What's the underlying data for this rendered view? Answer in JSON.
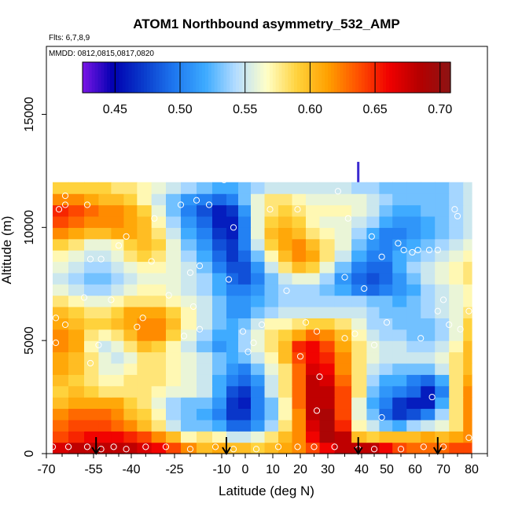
{
  "chart_data": {
    "type": "heatmap",
    "title": "ATOM1 Northbound asymmetry_532_AMP",
    "flights_note": "Flts: 6,7,8,9",
    "dates_note": "MMDD: 0812,0815,0817,0820",
    "xlabel": "Latitude (deg N)",
    "ylabel": "Altitude (m)",
    "xlim": [
      -70,
      85
    ],
    "ylim": [
      0,
      18000
    ],
    "x_ticks": [
      -70,
      -55,
      -40,
      -25,
      -10,
      0,
      10,
      20,
      30,
      40,
      50,
      60,
      70,
      80
    ],
    "x_tick_labels": [
      "-70",
      "-55",
      "-40",
      "-25",
      "-10",
      "0",
      "10",
      "20",
      "30",
      "40",
      "50",
      "60",
      "70",
      "80"
    ],
    "y_ticks": [
      0,
      5000,
      10000,
      15000
    ],
    "y_tick_labels": [
      "0",
      "5000",
      "10000",
      "15000"
    ],
    "colorbar": {
      "min": 0.425,
      "max": 0.708,
      "ticks": [
        0.45,
        0.5,
        0.55,
        0.6,
        0.65,
        0.7
      ],
      "tick_labels": [
        "0.45",
        "0.50",
        "0.55",
        "0.60",
        "0.65",
        "0.70"
      ],
      "colors": [
        "#7a16e6",
        "#0000b0",
        "#0a3ccc",
        "#1e78f0",
        "#3caaff",
        "#b4dcff",
        "#ffffc8",
        "#ffd23c",
        "#ffa000",
        "#ff5000",
        "#f00000",
        "#b40000",
        "#8c1414"
      ]
    },
    "altitude_bins": [
      0,
      500,
      1000,
      1500,
      2000,
      2500,
      3000,
      3500,
      4000,
      4500,
      5000,
      5500,
      6000,
      6500,
      7000,
      7500,
      8000,
      8500,
      9000,
      9500,
      10000,
      10500,
      11000,
      11500,
      12000
    ],
    "latitude_bins": [
      -68,
      -63,
      -58,
      -53,
      -48,
      -43,
      -38,
      -33,
      -28,
      -23,
      -18,
      -13,
      -8,
      -3,
      2,
      7,
      12,
      17,
      22,
      27,
      32,
      37,
      42,
      47,
      52,
      57,
      62,
      67,
      72,
      77,
      80
    ],
    "value_grid": [
      [
        0.67,
        0.68,
        0.68,
        0.68,
        0.68,
        0.68,
        0.67,
        0.66,
        0.64,
        0.62,
        0.6,
        0.61,
        0.6,
        0.6,
        0.59,
        0.6,
        0.61,
        0.62,
        0.64,
        0.66,
        0.68,
        0.68,
        0.68,
        0.66,
        0.64,
        0.63,
        0.63,
        0.63,
        0.64,
        0.64
      ],
      [
        0.64,
        0.65,
        0.66,
        0.66,
        0.66,
        0.65,
        0.64,
        0.62,
        0.6,
        0.57,
        0.58,
        0.57,
        0.55,
        0.55,
        0.56,
        0.58,
        0.6,
        0.62,
        0.66,
        0.69,
        0.68,
        0.6,
        0.59,
        0.6,
        0.6,
        0.6,
        0.61,
        0.6,
        0.61,
        0.62
      ],
      [
        0.63,
        0.64,
        0.64,
        0.64,
        0.63,
        0.62,
        0.6,
        0.58,
        0.55,
        0.53,
        0.53,
        0.52,
        0.49,
        0.49,
        0.51,
        0.54,
        0.58,
        0.62,
        0.67,
        0.69,
        0.65,
        0.57,
        0.55,
        0.53,
        0.52,
        0.54,
        0.55,
        0.56,
        0.58,
        0.62
      ],
      [
        0.62,
        0.63,
        0.63,
        0.63,
        0.62,
        0.6,
        0.59,
        0.57,
        0.54,
        0.53,
        0.52,
        0.5,
        0.47,
        0.47,
        0.5,
        0.53,
        0.57,
        0.62,
        0.68,
        0.69,
        0.64,
        0.56,
        0.53,
        0.49,
        0.47,
        0.48,
        0.5,
        0.54,
        0.58,
        0.62
      ],
      [
        0.6,
        0.61,
        0.61,
        0.61,
        0.61,
        0.59,
        0.58,
        0.56,
        0.54,
        0.53,
        0.53,
        0.51,
        0.47,
        0.46,
        0.5,
        0.53,
        0.57,
        0.63,
        0.68,
        0.68,
        0.64,
        0.56,
        0.52,
        0.5,
        0.47,
        0.46,
        0.46,
        0.52,
        0.58,
        0.62
      ],
      [
        0.59,
        0.6,
        0.59,
        0.58,
        0.58,
        0.58,
        0.58,
        0.57,
        0.56,
        0.56,
        0.55,
        0.52,
        0.48,
        0.47,
        0.5,
        0.55,
        0.58,
        0.63,
        0.68,
        0.68,
        0.64,
        0.58,
        0.53,
        0.51,
        0.5,
        0.49,
        0.46,
        0.5,
        0.58,
        0.62
      ],
      [
        0.6,
        0.59,
        0.58,
        0.57,
        0.57,
        0.58,
        0.58,
        0.58,
        0.57,
        0.56,
        0.55,
        0.52,
        0.5,
        0.49,
        0.51,
        0.55,
        0.58,
        0.63,
        0.68,
        0.67,
        0.63,
        0.58,
        0.54,
        0.52,
        0.52,
        0.5,
        0.49,
        0.52,
        0.58,
        0.61
      ],
      [
        0.61,
        0.6,
        0.58,
        0.56,
        0.56,
        0.57,
        0.58,
        0.58,
        0.57,
        0.56,
        0.55,
        0.53,
        0.51,
        0.5,
        0.53,
        0.56,
        0.58,
        0.63,
        0.67,
        0.66,
        0.62,
        0.58,
        0.55,
        0.54,
        0.53,
        0.53,
        0.53,
        0.55,
        0.58,
        0.6
      ],
      [
        0.61,
        0.6,
        0.58,
        0.56,
        0.55,
        0.56,
        0.58,
        0.58,
        0.57,
        0.56,
        0.55,
        0.53,
        0.52,
        0.53,
        0.55,
        0.57,
        0.6,
        0.64,
        0.66,
        0.65,
        0.62,
        0.58,
        0.56,
        0.55,
        0.55,
        0.55,
        0.55,
        0.56,
        0.58,
        0.6
      ],
      [
        0.62,
        0.61,
        0.57,
        0.55,
        0.56,
        0.58,
        0.6,
        0.59,
        0.57,
        0.55,
        0.53,
        0.51,
        0.52,
        0.54,
        0.56,
        0.58,
        0.6,
        0.65,
        0.66,
        0.64,
        0.61,
        0.58,
        0.56,
        0.55,
        0.55,
        0.54,
        0.54,
        0.55,
        0.57,
        0.6
      ],
      [
        0.62,
        0.61,
        0.58,
        0.57,
        0.58,
        0.6,
        0.62,
        0.62,
        0.59,
        0.56,
        0.54,
        0.52,
        0.52,
        0.54,
        0.56,
        0.58,
        0.59,
        0.61,
        0.63,
        0.62,
        0.6,
        0.57,
        0.55,
        0.54,
        0.54,
        0.53,
        0.53,
        0.54,
        0.56,
        0.59
      ],
      [
        0.61,
        0.6,
        0.59,
        0.59,
        0.6,
        0.61,
        0.62,
        0.62,
        0.6,
        0.57,
        0.55,
        0.53,
        0.52,
        0.53,
        0.55,
        0.57,
        0.57,
        0.58,
        0.59,
        0.59,
        0.58,
        0.56,
        0.54,
        0.54,
        0.53,
        0.53,
        0.53,
        0.54,
        0.56,
        0.59
      ],
      [
        0.6,
        0.59,
        0.58,
        0.58,
        0.59,
        0.61,
        0.61,
        0.61,
        0.59,
        0.57,
        0.55,
        0.53,
        0.51,
        0.51,
        0.53,
        0.54,
        0.55,
        0.55,
        0.55,
        0.55,
        0.55,
        0.55,
        0.54,
        0.53,
        0.53,
        0.53,
        0.54,
        0.55,
        0.56,
        0.58
      ],
      [
        0.58,
        0.57,
        0.56,
        0.56,
        0.57,
        0.58,
        0.58,
        0.58,
        0.57,
        0.56,
        0.55,
        0.53,
        0.51,
        0.51,
        0.52,
        0.53,
        0.54,
        0.54,
        0.54,
        0.54,
        0.54,
        0.54,
        0.53,
        0.53,
        0.52,
        0.53,
        0.54,
        0.55,
        0.56,
        0.57
      ],
      [
        0.56,
        0.55,
        0.54,
        0.54,
        0.55,
        0.56,
        0.57,
        0.57,
        0.56,
        0.55,
        0.54,
        0.52,
        0.5,
        0.5,
        0.51,
        0.53,
        0.54,
        0.54,
        0.54,
        0.53,
        0.52,
        0.5,
        0.49,
        0.5,
        0.51,
        0.52,
        0.54,
        0.55,
        0.56,
        0.57
      ],
      [
        0.55,
        0.54,
        0.53,
        0.53,
        0.54,
        0.55,
        0.56,
        0.56,
        0.56,
        0.55,
        0.54,
        0.52,
        0.49,
        0.48,
        0.5,
        0.53,
        0.55,
        0.56,
        0.56,
        0.54,
        0.51,
        0.49,
        0.48,
        0.49,
        0.51,
        0.53,
        0.55,
        0.56,
        0.57,
        0.58
      ],
      [
        0.56,
        0.55,
        0.54,
        0.54,
        0.55,
        0.56,
        0.57,
        0.57,
        0.56,
        0.55,
        0.53,
        0.5,
        0.48,
        0.48,
        0.51,
        0.55,
        0.58,
        0.6,
        0.59,
        0.56,
        0.53,
        0.5,
        0.49,
        0.49,
        0.52,
        0.54,
        0.55,
        0.56,
        0.57,
        0.58
      ],
      [
        0.57,
        0.56,
        0.55,
        0.55,
        0.56,
        0.58,
        0.59,
        0.58,
        0.56,
        0.54,
        0.52,
        0.49,
        0.47,
        0.49,
        0.53,
        0.57,
        0.6,
        0.62,
        0.61,
        0.58,
        0.55,
        0.52,
        0.5,
        0.5,
        0.52,
        0.53,
        0.54,
        0.55,
        0.56,
        0.57
      ],
      [
        0.59,
        0.58,
        0.56,
        0.56,
        0.57,
        0.59,
        0.6,
        0.59,
        0.56,
        0.53,
        0.51,
        0.48,
        0.47,
        0.5,
        0.55,
        0.59,
        0.61,
        0.62,
        0.6,
        0.58,
        0.56,
        0.53,
        0.51,
        0.5,
        0.51,
        0.52,
        0.53,
        0.54,
        0.55,
        0.56
      ],
      [
        0.62,
        0.61,
        0.6,
        0.6,
        0.61,
        0.61,
        0.6,
        0.58,
        0.55,
        0.52,
        0.5,
        0.47,
        0.46,
        0.5,
        0.56,
        0.6,
        0.61,
        0.6,
        0.58,
        0.57,
        0.56,
        0.54,
        0.52,
        0.5,
        0.5,
        0.51,
        0.52,
        0.53,
        0.54,
        0.55
      ],
      [
        0.64,
        0.63,
        0.62,
        0.62,
        0.62,
        0.61,
        0.6,
        0.57,
        0.54,
        0.51,
        0.49,
        0.46,
        0.46,
        0.5,
        0.56,
        0.59,
        0.6,
        0.59,
        0.57,
        0.56,
        0.56,
        0.55,
        0.54,
        0.52,
        0.51,
        0.51,
        0.52,
        0.53,
        0.54,
        0.55
      ],
      [
        0.65,
        0.64,
        0.63,
        0.62,
        0.62,
        0.61,
        0.59,
        0.56,
        0.53,
        0.5,
        0.48,
        0.46,
        0.47,
        0.51,
        0.56,
        0.58,
        0.59,
        0.58,
        0.57,
        0.57,
        0.57,
        0.56,
        0.55,
        0.53,
        0.52,
        0.52,
        0.53,
        0.53,
        0.54,
        0.55
      ],
      [
        0.62,
        0.62,
        0.61,
        0.6,
        0.6,
        0.59,
        0.57,
        0.55,
        0.53,
        0.51,
        0.5,
        0.49,
        0.5,
        0.53,
        0.56,
        0.58,
        0.58,
        0.57,
        0.56,
        0.56,
        0.56,
        0.56,
        0.55,
        0.54,
        0.53,
        0.53,
        0.53,
        0.53,
        0.54,
        0.55
      ],
      [
        0.59,
        0.59,
        0.59,
        0.59,
        0.58,
        0.58,
        0.57,
        0.56,
        0.55,
        0.54,
        0.53,
        0.52,
        0.52,
        0.53,
        0.54,
        0.55,
        0.55,
        0.55,
        0.55,
        0.55,
        0.55,
        0.54,
        0.54,
        0.53,
        0.53,
        0.53,
        0.53,
        0.53,
        0.54,
        0.55
      ],
      [
        null,
        null,
        null,
        null,
        null,
        null,
        null,
        null,
        null,
        null,
        null,
        0.51,
        0.51,
        0.51,
        0.51,
        0.51,
        0.51,
        0.51,
        0.51,
        0.51,
        0.52,
        0.52,
        0.52,
        0.52,
        0.52,
        null,
        null,
        null,
        null,
        null
      ]
    ],
    "measurements": [
      {
        "lat": -68,
        "alt": 300
      },
      {
        "lat": -63,
        "alt": 300
      },
      {
        "lat": -57,
        "alt": 300
      },
      {
        "lat": -52,
        "alt": 200
      },
      {
        "lat": -47,
        "alt": 300
      },
      {
        "lat": -42,
        "alt": 200
      },
      {
        "lat": -35,
        "alt": 300
      },
      {
        "lat": -28,
        "alt": 300
      },
      {
        "lat": -20,
        "alt": 200
      },
      {
        "lat": -12,
        "alt": 300
      },
      {
        "lat": -5,
        "alt": 200
      },
      {
        "lat": 4,
        "alt": 200
      },
      {
        "lat": 12,
        "alt": 300
      },
      {
        "lat": 19,
        "alt": 300
      },
      {
        "lat": 25,
        "alt": 300
      },
      {
        "lat": 32,
        "alt": 300
      },
      {
        "lat": 39,
        "alt": 200
      },
      {
        "lat": 45,
        "alt": 200
      },
      {
        "lat": 55,
        "alt": 200
      },
      {
        "lat": 63,
        "alt": 300
      },
      {
        "lat": 70,
        "alt": 300
      },
      {
        "lat": 79,
        "alt": 700
      },
      {
        "lat": -67,
        "alt": 4900
      },
      {
        "lat": -64,
        "alt": 5700
      },
      {
        "lat": -56,
        "alt": 4000
      },
      {
        "lat": -53,
        "alt": 4800
      },
      {
        "lat": -38,
        "alt": 5600
      },
      {
        "lat": -36,
        "alt": 6000
      },
      {
        "lat": -22,
        "alt": 5200
      },
      {
        "lat": -19,
        "alt": 6500
      },
      {
        "lat": -17,
        "alt": 5500
      },
      {
        "lat": -1,
        "alt": 5400
      },
      {
        "lat": 3,
        "alt": 4900
      },
      {
        "lat": 6,
        "alt": 5700
      },
      {
        "lat": 20,
        "alt": 4300
      },
      {
        "lat": 22,
        "alt": 5800
      },
      {
        "lat": 26,
        "alt": 5400
      },
      {
        "lat": 35,
        "alt": 5100
      },
      {
        "lat": 38,
        "alt": 5300
      },
      {
        "lat": 45,
        "alt": 4800
      },
      {
        "lat": 50,
        "alt": 5800
      },
      {
        "lat": 62,
        "alt": 5100
      },
      {
        "lat": 68,
        "alt": 6300
      },
      {
        "lat": 72,
        "alt": 5700
      },
      {
        "lat": 76,
        "alt": 5500
      },
      {
        "lat": 79,
        "alt": 6300
      },
      {
        "lat": 1,
        "alt": 4500
      },
      {
        "lat": 27,
        "alt": 3400
      },
      {
        "lat": 26,
        "alt": 1900
      },
      {
        "lat": 48,
        "alt": 1600
      },
      {
        "lat": 66,
        "alt": 2500
      },
      {
        "lat": -67,
        "alt": 6000
      },
      {
        "lat": -58,
        "alt": 6900
      },
      {
        "lat": -48,
        "alt": 6800
      },
      {
        "lat": -27,
        "alt": 7000
      },
      {
        "lat": -20,
        "alt": 8000
      },
      {
        "lat": -7,
        "alt": 7700
      },
      {
        "lat": 15,
        "alt": 7200
      },
      {
        "lat": 35,
        "alt": 7800
      },
      {
        "lat": 41,
        "alt": 7300
      },
      {
        "lat": 70,
        "alt": 6800
      },
      {
        "lat": -56,
        "alt": 8600
      },
      {
        "lat": -52,
        "alt": 8600
      },
      {
        "lat": -45,
        "alt": 9200
      },
      {
        "lat": -42,
        "alt": 9600
      },
      {
        "lat": -33,
        "alt": 8500
      },
      {
        "lat": -17,
        "alt": 8300
      },
      {
        "lat": 44,
        "alt": 9600
      },
      {
        "lat": 48,
        "alt": 8700
      },
      {
        "lat": 54,
        "alt": 9300
      },
      {
        "lat": 56,
        "alt": 9000
      },
      {
        "lat": 59,
        "alt": 8900
      },
      {
        "lat": 61,
        "alt": 9000
      },
      {
        "lat": 65,
        "alt": 9000
      },
      {
        "lat": 68,
        "alt": 9000
      },
      {
        "lat": 75,
        "alt": 10500
      },
      {
        "lat": -66,
        "alt": 10800
      },
      {
        "lat": -32,
        "alt": 10400
      },
      {
        "lat": -23,
        "alt": 11000
      },
      {
        "lat": -14,
        "alt": 11000
      },
      {
        "lat": -5,
        "alt": 10000
      },
      {
        "lat": 9,
        "alt": 10800
      },
      {
        "lat": 19,
        "alt": 10800
      },
      {
        "lat": 36,
        "alt": 10400
      },
      {
        "lat": 74,
        "alt": 10800
      },
      {
        "lat": -64,
        "alt": 11400
      },
      {
        "lat": -64,
        "alt": 11000
      },
      {
        "lat": -18,
        "alt": 11200
      },
      {
        "lat": -9,
        "alt": 12100
      },
      {
        "lat": 33,
        "alt": 11600
      },
      {
        "lat": -57,
        "alt": 11000
      }
    ],
    "flight_markers_lat": [
      -54,
      -8,
      39,
      68
    ],
    "profile_top_lat": 39,
    "profile_top_alt": [
      12000,
      12900
    ]
  }
}
